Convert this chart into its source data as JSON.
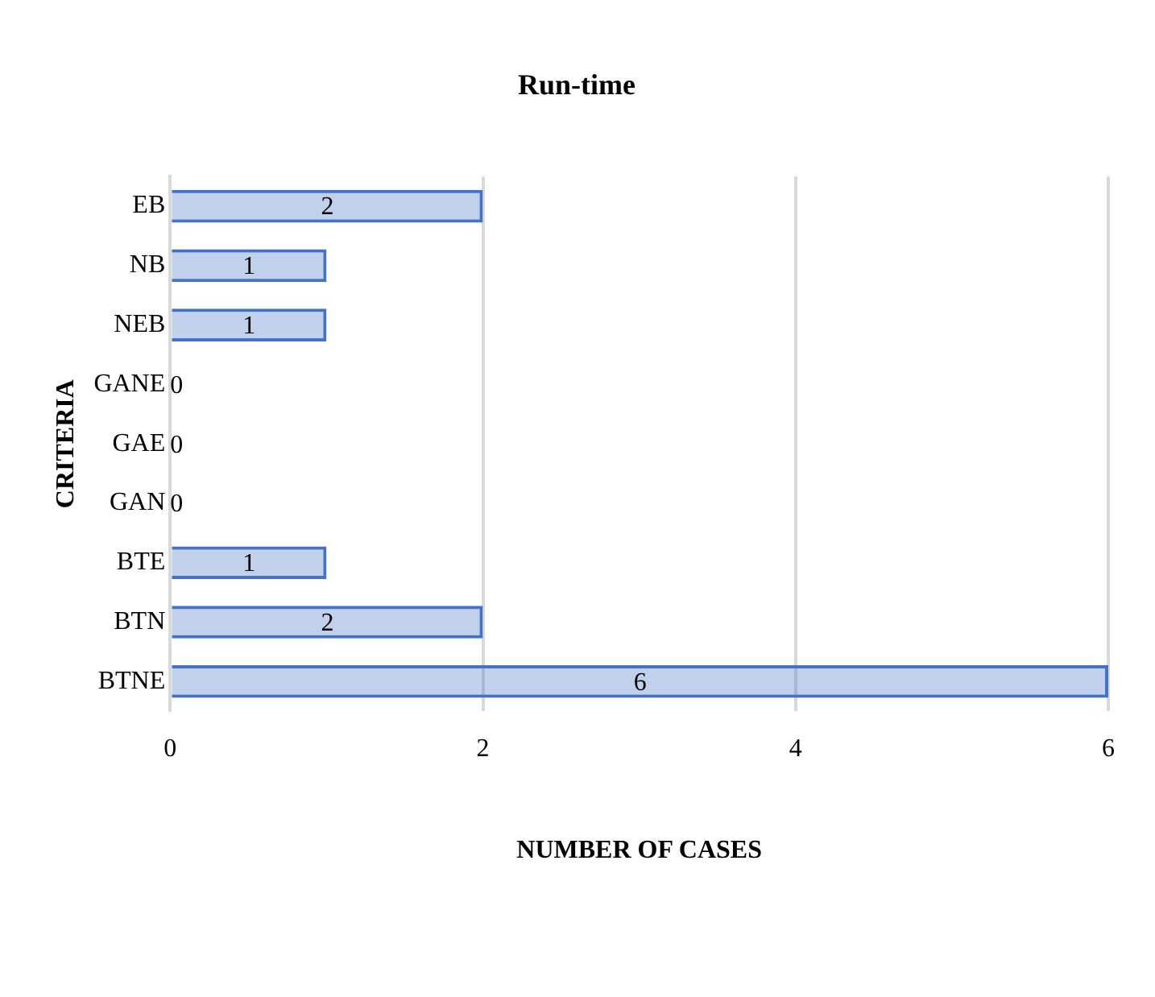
{
  "chart_data": {
    "type": "bar",
    "orientation": "horizontal",
    "title": "Run-time",
    "xlabel": "NUMBER OF CASES",
    "ylabel": "CRITERIA",
    "categories": [
      "EB",
      "NB",
      "NEB",
      "GANE",
      "GAE",
      "GAN",
      "BTE",
      "BTN",
      "BTNE"
    ],
    "values": [
      2,
      1,
      1,
      0,
      0,
      0,
      1,
      2,
      6
    ],
    "color": "#4472c4",
    "xlim": [
      0,
      6
    ],
    "xticks": [
      0,
      2,
      4,
      6
    ],
    "grid": "x",
    "data_labels": true,
    "legend": false
  }
}
